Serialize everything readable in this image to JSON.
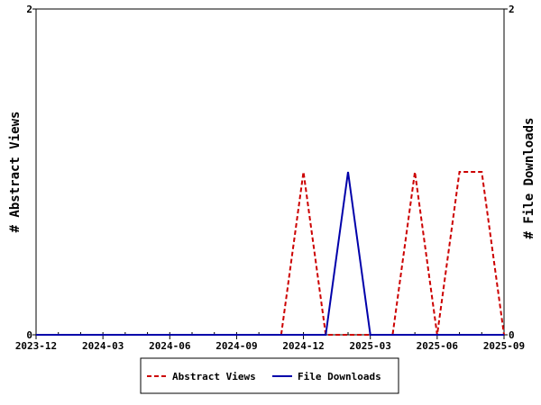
{
  "chart_data": {
    "type": "line",
    "title": "",
    "xlabel": "",
    "ylabel_left": "# Abstract Views",
    "ylabel_right": "# File Downloads",
    "x_ticks": [
      "2023-12",
      "2024-03",
      "2024-06",
      "2024-09",
      "2024-12",
      "2025-03",
      "2025-06",
      "2025-09"
    ],
    "x_tick_values": [
      "2023-12",
      "2024-03",
      "2024-06",
      "2024-09",
      "2024-12",
      "2025-03",
      "2025-06",
      "2025-09"
    ],
    "xlim": [
      "2023-12",
      "2025-09"
    ],
    "ylim_left": [
      0,
      2
    ],
    "ylim_right": [
      0,
      2
    ],
    "y_ticks_left": [
      "0",
      "2"
    ],
    "y_ticks_right": [
      "0",
      "2"
    ],
    "grid": false,
    "legend_position": "bottom",
    "series": [
      {
        "name": "Abstract Views",
        "color": "#cc0000",
        "dash": "dashed",
        "axis": "left",
        "points": [
          [
            "2023-12",
            0
          ],
          [
            "2024-01",
            0
          ],
          [
            "2024-02",
            0
          ],
          [
            "2024-03",
            0
          ],
          [
            "2024-04",
            0
          ],
          [
            "2024-05",
            0
          ],
          [
            "2024-06",
            0
          ],
          [
            "2024-07",
            0
          ],
          [
            "2024-08",
            0
          ],
          [
            "2024-09",
            0
          ],
          [
            "2024-10",
            0
          ],
          [
            "2024-11",
            0
          ],
          [
            "2024-12",
            1
          ],
          [
            "2025-01",
            0
          ],
          [
            "2025-02",
            0
          ],
          [
            "2025-03",
            0
          ],
          [
            "2025-04",
            0
          ],
          [
            "2025-05",
            1
          ],
          [
            "2025-06",
            0
          ],
          [
            "2025-07",
            1
          ],
          [
            "2025-08",
            1
          ],
          [
            "2025-09",
            0
          ]
        ]
      },
      {
        "name": "File Downloads",
        "color": "#0000aa",
        "dash": "solid",
        "axis": "right",
        "points": [
          [
            "2023-12",
            0
          ],
          [
            "2024-01",
            0
          ],
          [
            "2024-02",
            0
          ],
          [
            "2024-03",
            0
          ],
          [
            "2024-04",
            0
          ],
          [
            "2024-05",
            0
          ],
          [
            "2024-06",
            0
          ],
          [
            "2024-07",
            0
          ],
          [
            "2024-08",
            0
          ],
          [
            "2024-09",
            0
          ],
          [
            "2024-10",
            0
          ],
          [
            "2024-11",
            0
          ],
          [
            "2024-12",
            0
          ],
          [
            "2025-01",
            0
          ],
          [
            "2025-02",
            1
          ],
          [
            "2025-03",
            0
          ],
          [
            "2025-04",
            0
          ],
          [
            "2025-05",
            0
          ],
          [
            "2025-06",
            0
          ],
          [
            "2025-07",
            0
          ],
          [
            "2025-08",
            0
          ],
          [
            "2025-09",
            0
          ]
        ]
      }
    ]
  }
}
